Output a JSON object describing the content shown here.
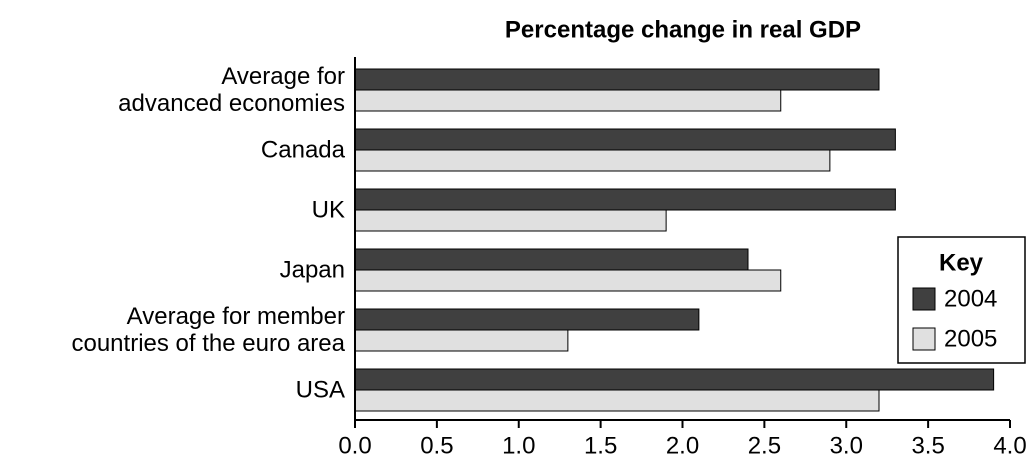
{
  "chart_data": {
    "type": "bar",
    "orientation": "horizontal",
    "title": "Percentage change in real GDP",
    "categories": [
      "Average for\nadvanced economies",
      "Canada",
      "UK",
      "Japan",
      "Average for member\ncountries of the euro area",
      "USA"
    ],
    "series": [
      {
        "name": "2004",
        "color": "#404040",
        "values": [
          3.2,
          3.3,
          3.3,
          2.4,
          2.1,
          3.9
        ]
      },
      {
        "name": "2005",
        "color": "#e0e0e0",
        "values": [
          2.6,
          2.9,
          1.9,
          2.6,
          1.3,
          3.2
        ]
      }
    ],
    "xlim": [
      0,
      4
    ],
    "xticks": [
      {
        "value": 0,
        "label": "0.0"
      },
      0.5,
      {
        "value": 1,
        "label": "1.0"
      },
      1.5,
      {
        "value": 2,
        "label": "2.0"
      },
      2.5,
      {
        "value": 3,
        "label": "3.0"
      },
      3.5,
      {
        "value": 4,
        "label": "4.0"
      }
    ],
    "legend_title": "Key",
    "legend": "right"
  }
}
